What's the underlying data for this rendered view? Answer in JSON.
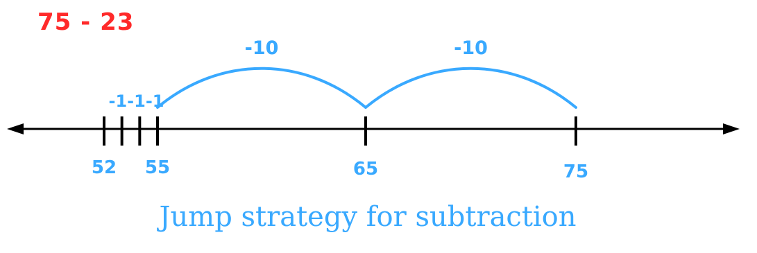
{
  "problem": "75 - 23",
  "caption": "Jump strategy for subtraction",
  "colors": {
    "jump": "#39a9ff",
    "label": "#39a9ff",
    "problem": "#ff2a2a",
    "line": "#000000"
  },
  "number_line": {
    "ticks": [
      52,
      53,
      54,
      55,
      65,
      75
    ],
    "tick_labels": [
      {
        "value": 52,
        "text": "52"
      },
      {
        "value": 55,
        "text": "55"
      },
      {
        "value": 65,
        "text": "65"
      },
      {
        "value": 75,
        "text": "75"
      }
    ],
    "big_jumps": [
      {
        "from": 75,
        "to": 65,
        "label": "-10"
      },
      {
        "from": 65,
        "to": 55,
        "label": "-10"
      }
    ],
    "small_jumps_label": "-1-1-1"
  }
}
